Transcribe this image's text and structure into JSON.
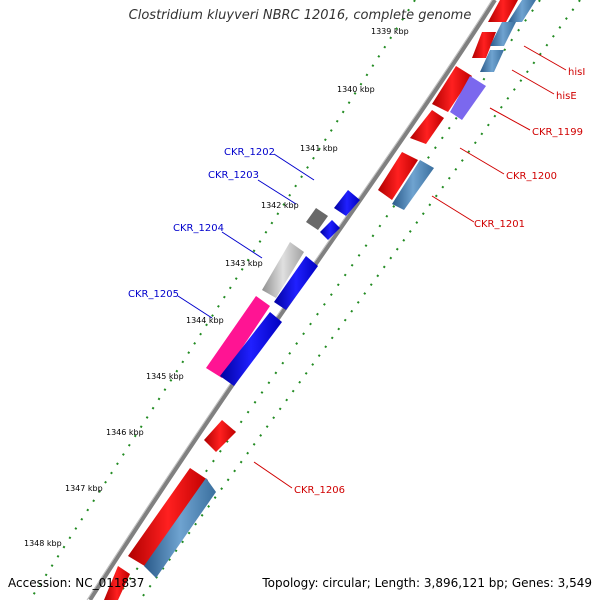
{
  "header": {
    "title": "Clostridium kluyveri NBRC 12016, complete genome"
  },
  "footer": {
    "accession": "Accession: NC_011837",
    "summary": "Topology: circular; Length: 3,896,121 bp; Genes: 3,549"
  },
  "ruler": {
    "ticks": [
      "1339 kbp",
      "1340 kbp",
      "1341 kbp",
      "1342 kbp",
      "1343 kbp",
      "1344 kbp",
      "1345 kbp",
      "1346 kbp",
      "1347 kbp",
      "1348 kbp"
    ]
  },
  "genes": {
    "right": [
      "hisI",
      "hisE",
      "CKR_1199",
      "CKR_1200",
      "CKR_1201",
      "CKR_1206"
    ],
    "left": [
      "CKR_1202",
      "CKR_1203",
      "CKR_1204",
      "CKR_1205"
    ]
  },
  "colors": {
    "forward": "#ff0000",
    "reverse": "#0000ff",
    "steelblue": "#4682b4",
    "pink": "#ff1493",
    "purple": "#7b68ee",
    "gray": "#c0c0c0",
    "darkgray": "#696969",
    "dots": "#228b22",
    "backbone": "#808080"
  }
}
